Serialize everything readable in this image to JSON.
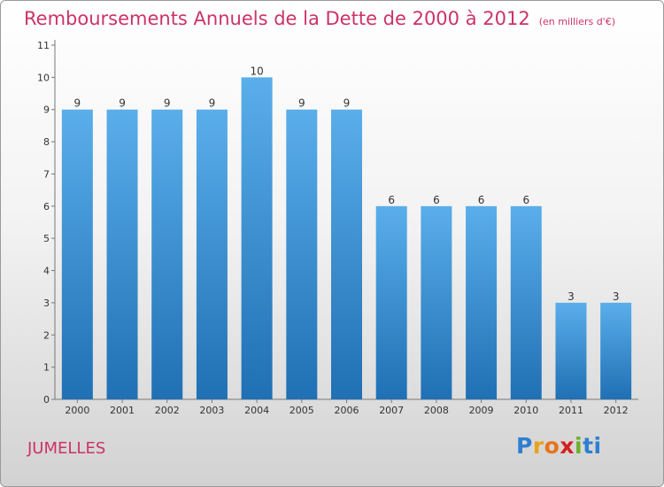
{
  "header": {
    "title": "Remboursements Annuels de la Dette de 2000 à 2012",
    "subtitle": "(en milliers d'€)"
  },
  "footer": {
    "commune": "JUMELLES",
    "logo_letters": [
      "P",
      "r",
      "o",
      "x",
      "i",
      "t",
      "i"
    ],
    "logo_colors": [
      "#2e7fd1",
      "#e8a21a",
      "#e8741a",
      "#d62020",
      "#6bb02c",
      "#2e7fd1",
      "#2e7fd1"
    ]
  },
  "chart_data": {
    "type": "bar",
    "title": "Remboursements Annuels de la Dette de 2000 à 2012",
    "subtitle": "(en milliers d'€)",
    "categories": [
      "2000",
      "2001",
      "2002",
      "2003",
      "2004",
      "2005",
      "2006",
      "2007",
      "2008",
      "2009",
      "2010",
      "2011",
      "2012"
    ],
    "values": [
      9,
      9,
      9,
      9,
      10,
      9,
      9,
      6,
      6,
      6,
      6,
      3,
      3
    ],
    "yticks": [
      "0",
      "1",
      "2",
      "3",
      "4",
      "5",
      "6",
      "7",
      "8",
      "9",
      "10",
      "11"
    ],
    "ylim": [
      0,
      11
    ],
    "grid": false,
    "bar_color_top": "#5aaeea",
    "bar_color_bottom": "#1f70b4"
  }
}
